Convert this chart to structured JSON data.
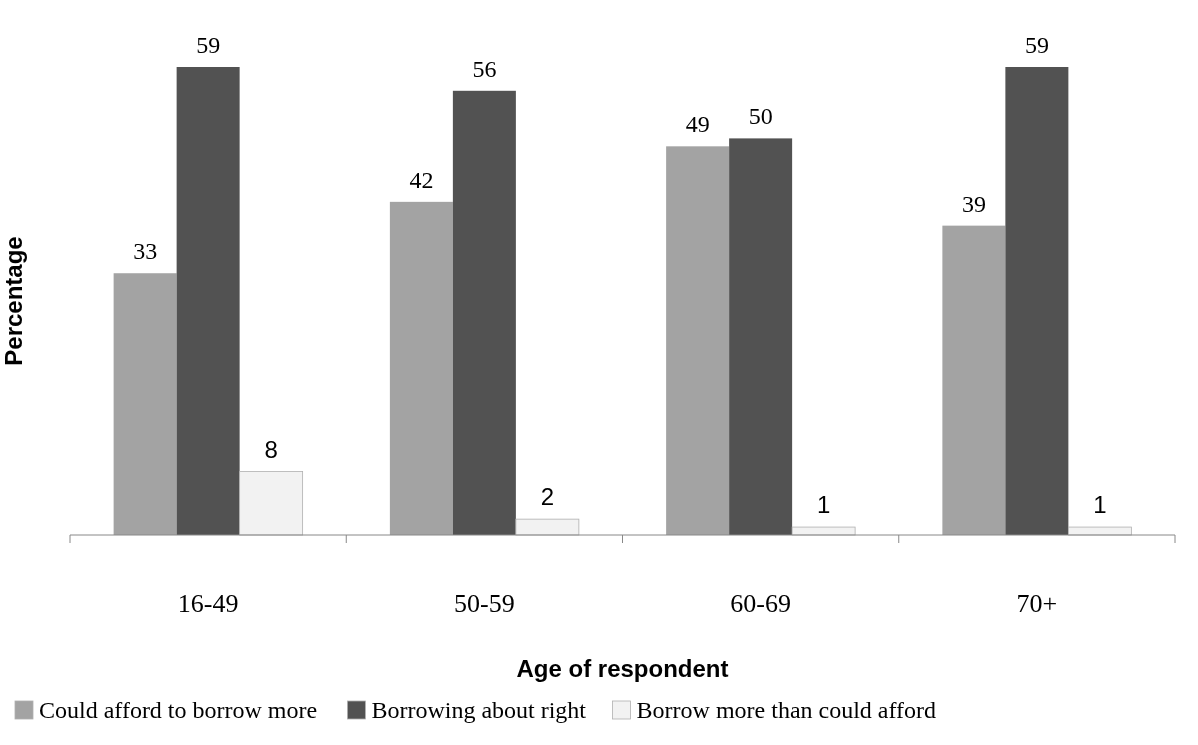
{
  "chart_data": {
    "type": "bar",
    "xlabel": "Age of respondent",
    "ylabel": "Percentage",
    "categories": [
      "16-49",
      "50-59",
      "60-69",
      "70+"
    ],
    "series": [
      {
        "name": "Could afford to borrow more",
        "color": "#a3a3a3",
        "values": [
          33,
          42,
          49,
          39
        ]
      },
      {
        "name": "Borrowing about right",
        "color": "#525252",
        "values": [
          59,
          56,
          50,
          59
        ]
      },
      {
        "name": "Borrow more than could afford",
        "color": "#f2f2f2",
        "values": [
          8,
          2,
          1,
          1
        ]
      }
    ],
    "data_labels": true,
    "legend": "bottom",
    "grid": false
  }
}
